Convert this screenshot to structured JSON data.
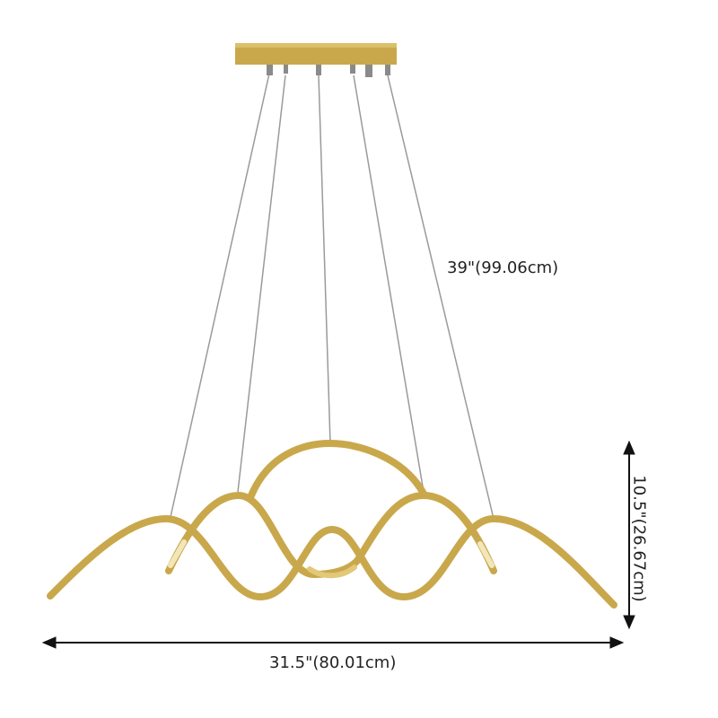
{
  "product": {
    "colors": {
      "frame": "#c9a84c",
      "frame_light": "#e2c878",
      "wire": "#9a9a9a",
      "arrow": "#111111"
    },
    "dimensions": {
      "height_label": "39\"(99.06cm)",
      "fixture_height_label": "10.5\"(26.67cm)",
      "width_label": "31.5\"(80.01cm)"
    }
  }
}
